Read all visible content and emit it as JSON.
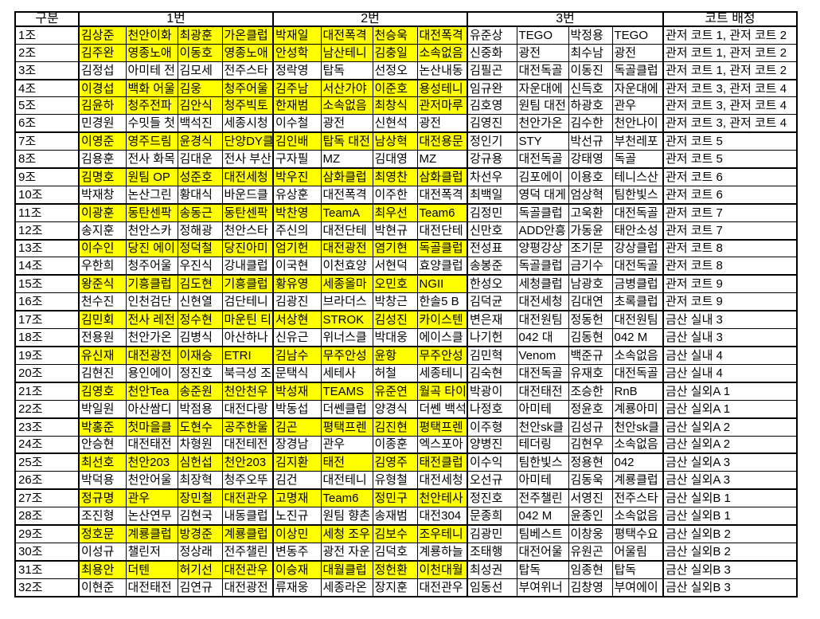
{
  "colors": {
    "highlight": "#FFFF00",
    "border": "#000000",
    "background": "#FFFFFF"
  },
  "header": {
    "col_groups": [
      {
        "label": "구분",
        "span": 1
      },
      {
        "label": "1번",
        "span": 4
      },
      {
        "label": "2번",
        "span": 4
      },
      {
        "label": "3번",
        "span": 4
      },
      {
        "label": "코트 배정",
        "span": 1
      }
    ]
  },
  "table": {
    "rows": [
      {
        "g": "1조",
        "hl": true,
        "c": [
          "김상준",
          "천안이화",
          "최광훈",
          "가온클럽",
          "박재일",
          "대전폭격",
          "천승욱",
          "대전폭격",
          "유준상",
          "TEGO",
          "박정용",
          "TEGO"
        ],
        "court": "관저 코트 1, 관저 코트 2"
      },
      {
        "g": "2조",
        "hl": true,
        "c": [
          "김주완",
          "영종노애",
          "이동호",
          "영종노애",
          "안성학",
          "남산테니",
          "김충일",
          "소속없음",
          "신중화",
          "광전",
          "최수남",
          "광전"
        ],
        "court": "관저 코트 1, 관저 코트 2"
      },
      {
        "g": "3조",
        "hl": false,
        "c": [
          "김정섭",
          "아미테 전",
          "김모세",
          "전주스타",
          "정락영",
          "탑독",
          "선정오",
          "논산내동",
          "김필곤",
          "대전독골",
          "이동진",
          "독골클럽"
        ],
        "court": "관저 코트 1, 관저 코트 2"
      },
      {
        "g": "4조",
        "hl": true,
        "c": [
          "이경섭",
          "백화 어울",
          "김웅",
          "청주어울",
          "김주남",
          "서산가야",
          "이준호",
          "용성테니",
          "임규완",
          "자운대에",
          "신득호",
          "자운대에"
        ],
        "court": "관저 코트 3, 관저 코트 4"
      },
      {
        "g": "5조",
        "hl": true,
        "c": [
          "김윤하",
          "청주전파",
          "김안식",
          "청주빅토",
          "한재범",
          "소속없음",
          "최창식",
          "관저마루",
          "김호영",
          "원팀 대전",
          "하광호",
          "관우"
        ],
        "court": "관저 코트 3, 관저 코트 4"
      },
      {
        "g": "6조",
        "hl": false,
        "c": [
          "민경원",
          "수밋들 첫",
          "백석진",
          "세종시청",
          "이수철",
          "광전",
          "신현석",
          "광전",
          "김영진",
          "천안가온",
          "김수한",
          "천안나이"
        ],
        "court": "관저 코트 3, 관저 코트 4"
      },
      {
        "g": "7조",
        "hl": true,
        "c": [
          "이영준",
          "영주드림",
          "윤경식",
          "단양DY클",
          "김인배",
          "탑독 대전",
          "남상혁",
          "대전용문",
          "정인기",
          "STY",
          "박선규",
          "부천레포"
        ],
        "court": "관저 코트 5"
      },
      {
        "g": "8조",
        "hl": false,
        "c": [
          "김용훈",
          "전사 화목",
          "김대운",
          "전사 부산",
          "구자필",
          "MZ",
          "김대영",
          "MZ",
          "강규용",
          "대전독골",
          "강태영",
          "독골"
        ],
        "court": "관저 코트 5"
      },
      {
        "g": "9조",
        "hl": true,
        "c": [
          "김명호",
          "원팀 OP",
          "성준호",
          "대전세청",
          "박우진",
          "삼화클럽",
          "최영찬",
          "삼화클럽",
          "차선우",
          "김포에이",
          "이용호",
          "테니스산"
        ],
        "court": "관저 코트 6"
      },
      {
        "g": "10조",
        "hl": false,
        "c": [
          "박재창",
          "논산그린",
          "황대식",
          "바운드클",
          "유상훈",
          "대전폭격",
          "이주한",
          "대전폭격",
          "최백일",
          "영덕 대게",
          "엄상혁",
          "팀한빛스"
        ],
        "court": "관저 코트 6"
      },
      {
        "g": "11조",
        "hl": true,
        "c": [
          "이광훈",
          "동탄센팍",
          "송동근",
          "동탄센팍",
          "박찬영",
          "TeamA",
          "최우선",
          "Team6",
          "김정민",
          "독골클럽",
          "고욱환",
          "대전독골"
        ],
        "court": "관저 코트 7"
      },
      {
        "g": "12조",
        "hl": false,
        "c": [
          "송지훈",
          "천안스카",
          "정해광",
          "천안스타",
          "주신의",
          "대전단테",
          "박현규",
          "대전단테",
          "신만호",
          "ADD안흥",
          "가동윤",
          "태안소성"
        ],
        "court": "관저 코트 7"
      },
      {
        "g": "13조",
        "hl": true,
        "c": [
          "이수인",
          "당진 에이",
          "정덕철",
          "당진아미",
          "엄기헌",
          "대전광전",
          "염기현",
          "독골클럽",
          "전성표",
          "양평강상",
          "조기문",
          "강상클럽"
        ],
        "court": "관저 코트 8"
      },
      {
        "g": "14조",
        "hl": false,
        "c": [
          "우한희",
          "청주어울",
          "우진식",
          "강내클럽",
          "이국현",
          "이천효양",
          "서현덕",
          "효양클럽",
          "송봉준",
          "독골클럽",
          "금기수",
          "대전독골"
        ],
        "court": "관저 코트 8"
      },
      {
        "g": "15조",
        "hl": true,
        "c": [
          "왕준식",
          "기흥클럽",
          "김도현",
          "기흥클럽",
          "황유영",
          "세종올마",
          "오민호",
          "NGII",
          "한성오",
          "세청클럽",
          "남광호",
          "금병클럽"
        ],
        "court": "관저 코트 9"
      },
      {
        "g": "16조",
        "hl": false,
        "c": [
          "천수진",
          "인천검단",
          "신현열",
          "검단테니",
          "김광진",
          "브라더스",
          "박창근",
          "한솔5 B",
          "김덕균",
          "대전세청",
          "김대연",
          "초록클럽"
        ],
        "court": "관저 코트 9"
      },
      {
        "g": "17조",
        "hl": true,
        "c": [
          "김민회",
          "전사 레전",
          "정수현",
          "마운틴 티",
          "서상현",
          "STROK",
          "김성진",
          "카이스텐",
          "변은재",
          "대전원팀",
          "정동헌",
          "대전원팀"
        ],
        "court": "금산 실내 3"
      },
      {
        "g": "18조",
        "hl": false,
        "c": [
          "전용원",
          "천안가온",
          "김병식",
          "아산하나",
          "신유근",
          "위너스클",
          "박대웅",
          "에이스클",
          "나기헌",
          "042 대",
          "김동현",
          "042 M"
        ],
        "court": "금산 실내 3"
      },
      {
        "g": "19조",
        "hl": true,
        "c": [
          "유신재",
          "대전광전",
          "이재승",
          "ETRI",
          "김남수",
          "무주안성",
          "윤항",
          "무주안성",
          "김민혁",
          "Venom",
          "백준규",
          "소속없음"
        ],
        "court": "금산 실내 4"
      },
      {
        "g": "20조",
        "hl": false,
        "c": [
          "김현진",
          "용인에이",
          "정진호",
          "북극성 조",
          "문택식",
          "세테사",
          "허철",
          "세종테니",
          "김숙현",
          "대전독골",
          "유재호",
          "대전독골"
        ],
        "court": "금산 실내 4"
      },
      {
        "g": "21조",
        "hl": true,
        "c": [
          "김영호",
          "천안Tea",
          "송준원",
          "천안천우",
          "박성재",
          "TEAMS",
          "유준연",
          "월곡 타이",
          "박광이",
          "대전태전",
          "조승한",
          "RnB"
        ],
        "court": "금산 실외A 1"
      },
      {
        "g": "22조",
        "hl": false,
        "c": [
          "박일원",
          "아산쌈디",
          "박점용",
          "대전다랑",
          "박동섭",
          "더쎈클럽",
          "양경식",
          "더쎈 백석",
          "나정호",
          "아미테",
          "정윤호",
          "계룡아미"
        ],
        "court": "금산 실외A 1"
      },
      {
        "g": "23조",
        "hl": true,
        "c": [
          "박홍준",
          "첫마을클",
          "도현수",
          "공주한울",
          "김곤",
          "평택프렌",
          "김진현",
          "평택프렌",
          "이주형",
          "천안sk클",
          "김성규",
          "천안sk클"
        ],
        "court": "금산 실외A 2"
      },
      {
        "g": "24조",
        "hl": false,
        "c": [
          "안승현",
          "대전태전",
          "차형원",
          "대전테전",
          "장경남",
          "관우",
          "이종훈",
          "엑스포아",
          "양병진",
          "테더링",
          "김현우",
          "소속없음"
        ],
        "court": "금산 실외A 2"
      },
      {
        "g": "25조",
        "hl": true,
        "c": [
          "최선호",
          "천안203",
          "심헌섭",
          "천안203",
          "김지환",
          "태전",
          "김영주",
          "태전클럽",
          "이수익",
          "팀한빛스",
          "정용현",
          "042"
        ],
        "court": "금산 실외A 3"
      },
      {
        "g": "26조",
        "hl": false,
        "c": [
          "박덕용",
          "천안어울",
          "최장혁",
          "청주오뚜",
          "김건",
          "대전테니",
          "유형철",
          "대전세청",
          "오선규",
          "아미테",
          "김동욱",
          "계룡클럽"
        ],
        "court": "금산 실외A 3"
      },
      {
        "g": "27조",
        "hl": true,
        "c": [
          "정규명",
          "관우",
          "장민철",
          "대전관우",
          "고명재",
          "Team6",
          "정민구",
          "천안테사",
          "정진호",
          "전주챌린",
          "서영진",
          "전주스타"
        ],
        "court": "금산 실외B 1"
      },
      {
        "g": "28조",
        "hl": false,
        "c": [
          "조진형",
          "논산연무",
          "김현국",
          "내동클럽",
          "노진규",
          "원팀 향촌",
          "송재범",
          "대전304",
          "문종희",
          "042 M",
          "윤종인",
          "소속없음"
        ],
        "court": "금산 실외B 1"
      },
      {
        "g": "29조",
        "hl": true,
        "c": [
          "정호문",
          "계룡클럽",
          "방경준",
          "계룡클럽",
          "이상민",
          "세청 조우",
          "김보수",
          "조우테니",
          "김광민",
          "팀베스트",
          "이창웅",
          "평택수요"
        ],
        "court": "금산 실외B 2"
      },
      {
        "g": "30조",
        "hl": false,
        "c": [
          "이성규",
          "챌린저",
          "정상래",
          "전주챌린",
          "변동주",
          "광전 자운",
          "김덕호",
          "계룡하늘",
          "조태행",
          "대전어울",
          "유원곤",
          "어울림"
        ],
        "court": "금산 실외B 2"
      },
      {
        "g": "31조",
        "hl": true,
        "c": [
          "최용안",
          "더텐",
          "허기선",
          "대전관우",
          "이승재",
          "대월클럽",
          "정헌환",
          "이천대월",
          "최성권",
          "탑독",
          "임종현",
          "탑독"
        ],
        "court": "금산 실외B 3"
      },
      {
        "g": "32조",
        "hl": false,
        "c": [
          "이현준",
          "대전태전",
          "김연규",
          "대전광전",
          "류재웅",
          "세종라온",
          "장지훈",
          "대전관우",
          "임동선",
          "부여위너",
          "김창영",
          "부여에이"
        ],
        "court": "금산 실외B 3"
      }
    ]
  }
}
